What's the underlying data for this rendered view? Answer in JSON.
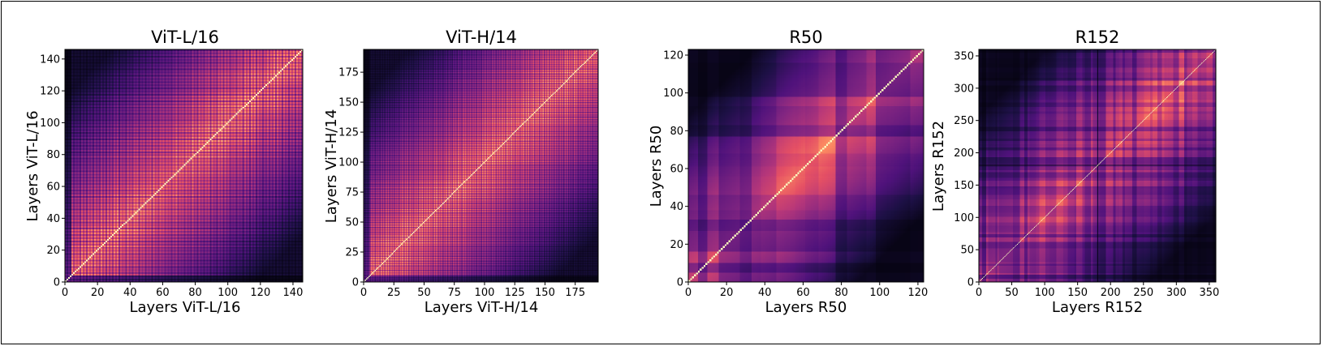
{
  "chart_data": [
    {
      "type": "heatmap",
      "title": "ViT-L/16",
      "xlabel": "Layers ViT-L/16",
      "ylabel": "Layers ViT-L/16",
      "n": 146,
      "xlim": [
        0,
        146
      ],
      "ylim": [
        0,
        146
      ],
      "xticks": [
        0,
        20,
        40,
        60,
        80,
        100,
        120,
        140
      ],
      "yticks": [
        0,
        20,
        40,
        60,
        80,
        100,
        120,
        140
      ],
      "style": "vit"
    },
    {
      "type": "heatmap",
      "title": "ViT-H/14",
      "xlabel": "Layers ViT-H/14",
      "ylabel": "Layers ViT-H/14",
      "n": 194,
      "xlim": [
        0,
        194
      ],
      "ylim": [
        0,
        194
      ],
      "xticks": [
        0,
        25,
        50,
        75,
        100,
        125,
        150,
        175
      ],
      "yticks": [
        0,
        25,
        50,
        75,
        100,
        125,
        150,
        175
      ],
      "style": "vit"
    },
    {
      "type": "heatmap",
      "title": "R50",
      "xlabel": "Layers R50",
      "ylabel": "Layers R50",
      "n": 123,
      "xlim": [
        0,
        123
      ],
      "ylim": [
        0,
        123
      ],
      "xticks": [
        0,
        20,
        40,
        60,
        80,
        100,
        120
      ],
      "yticks": [
        0,
        20,
        40,
        60,
        80,
        100,
        120
      ],
      "style": "resnet"
    },
    {
      "type": "heatmap",
      "title": "R152",
      "xlabel": "Layers R152",
      "ylabel": "Layers R152",
      "n": 360,
      "xlim": [
        0,
        360
      ],
      "ylim": [
        0,
        360
      ],
      "xticks": [
        0,
        50,
        100,
        150,
        200,
        250,
        300,
        350
      ],
      "yticks": [
        0,
        50,
        100,
        150,
        200,
        250,
        300,
        350
      ],
      "style": "resnet"
    }
  ],
  "colormap": "magma",
  "colors": {
    "frame": "#000000",
    "background": "#ffffff"
  }
}
